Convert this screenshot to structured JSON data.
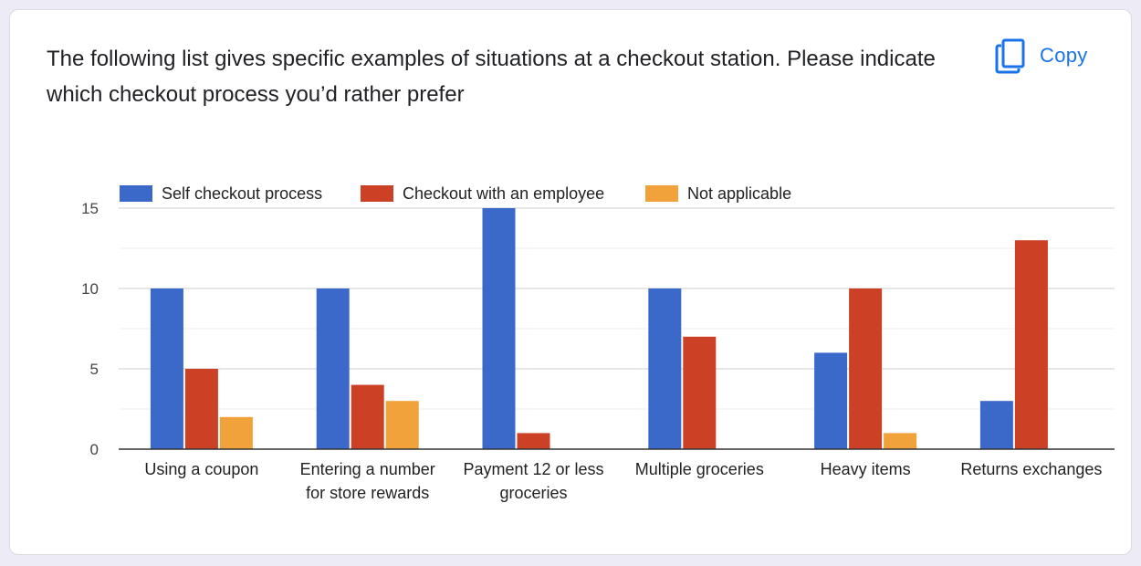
{
  "question": {
    "text": "The following list gives specific examples of situations at a checkout station. Please indicate which checkout process you’d rather prefer"
  },
  "copy_button": {
    "label": "Copy",
    "icon": "copy-icon",
    "color": "#1a73e8"
  },
  "chart_data": {
    "type": "bar",
    "title": "",
    "xlabel": "",
    "ylabel": "",
    "ylim": [
      0,
      15
    ],
    "yticks": [
      0,
      5,
      10,
      15
    ],
    "minor_gridlines": true,
    "legend_position": "top-left",
    "categories": [
      [
        "Using a coupon"
      ],
      [
        "Entering a number",
        "for store rewards"
      ],
      [
        "Payment 12 or less",
        "groceries"
      ],
      [
        "Multiple groceries"
      ],
      [
        "Heavy items"
      ],
      [
        "Returns exchanges"
      ]
    ],
    "series": [
      {
        "name": "Self checkout process",
        "color": "#3b69c9",
        "values": [
          10,
          10,
          15,
          10,
          6,
          3
        ]
      },
      {
        "name": "Checkout with an employee",
        "color": "#cc4125",
        "values": [
          5,
          4,
          1,
          7,
          10,
          13
        ]
      },
      {
        "name": "Not applicable",
        "color": "#f1a23a",
        "values": [
          2,
          3,
          0,
          0,
          1,
          0
        ]
      }
    ]
  }
}
